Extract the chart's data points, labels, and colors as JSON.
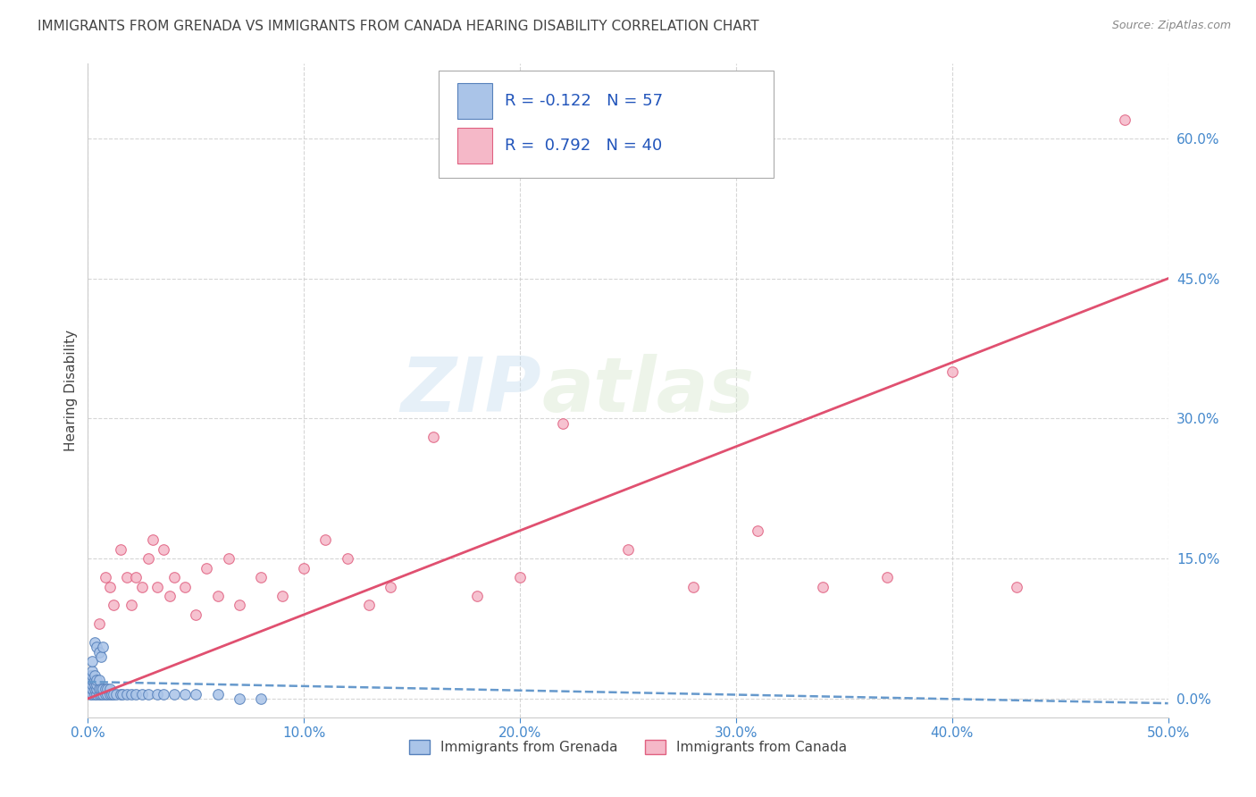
{
  "title": "IMMIGRANTS FROM GRENADA VS IMMIGRANTS FROM CANADA HEARING DISABILITY CORRELATION CHART",
  "source": "Source: ZipAtlas.com",
  "ylabel": "Hearing Disability",
  "xlim": [
    0.0,
    0.5
  ],
  "ylim": [
    -0.02,
    0.68
  ],
  "xticks": [
    0.0,
    0.1,
    0.2,
    0.3,
    0.4,
    0.5
  ],
  "yticks": [
    0.0,
    0.15,
    0.3,
    0.45,
    0.6
  ],
  "xticklabels": [
    "0.0%",
    "10.0%",
    "20.0%",
    "30.0%",
    "40.0%",
    "50.0%"
  ],
  "yticklabels": [
    "0.0%",
    "15.0%",
    "30.0%",
    "45.0%",
    "60.0%"
  ],
  "background_color": "#ffffff",
  "watermark_zip": "ZIP",
  "watermark_atlas": "atlas",
  "grenada_color": "#aac4e8",
  "canada_color": "#f5b8c8",
  "grenada_edge": "#5580bb",
  "canada_edge": "#e06080",
  "trend_grenada_color": "#6699cc",
  "trend_canada_color": "#e05070",
  "grid_color": "#cccccc",
  "tick_color": "#4488cc",
  "title_color": "#444444",
  "source_color": "#888888",
  "grenada_x": [
    0.001,
    0.001,
    0.001,
    0.001,
    0.001,
    0.002,
    0.002,
    0.002,
    0.002,
    0.002,
    0.002,
    0.002,
    0.003,
    0.003,
    0.003,
    0.003,
    0.003,
    0.003,
    0.004,
    0.004,
    0.004,
    0.004,
    0.004,
    0.005,
    0.005,
    0.005,
    0.005,
    0.006,
    0.006,
    0.006,
    0.007,
    0.007,
    0.007,
    0.008,
    0.008,
    0.009,
    0.009,
    0.01,
    0.01,
    0.011,
    0.012,
    0.013,
    0.015,
    0.016,
    0.018,
    0.02,
    0.022,
    0.025,
    0.028,
    0.032,
    0.035,
    0.04,
    0.045,
    0.05,
    0.06,
    0.07,
    0.08
  ],
  "grenada_y": [
    0.005,
    0.01,
    0.015,
    0.02,
    0.025,
    0.005,
    0.01,
    0.015,
    0.02,
    0.025,
    0.03,
    0.04,
    0.005,
    0.01,
    0.015,
    0.02,
    0.025,
    0.06,
    0.005,
    0.01,
    0.015,
    0.02,
    0.055,
    0.005,
    0.01,
    0.02,
    0.05,
    0.005,
    0.01,
    0.045,
    0.005,
    0.01,
    0.055,
    0.005,
    0.01,
    0.005,
    0.01,
    0.005,
    0.01,
    0.005,
    0.005,
    0.005,
    0.005,
    0.005,
    0.005,
    0.005,
    0.005,
    0.005,
    0.005,
    0.005,
    0.005,
    0.005,
    0.005,
    0.005,
    0.005,
    0.0,
    0.0
  ],
  "canada_x": [
    0.005,
    0.008,
    0.01,
    0.012,
    0.015,
    0.018,
    0.02,
    0.022,
    0.025,
    0.028,
    0.03,
    0.032,
    0.035,
    0.038,
    0.04,
    0.045,
    0.05,
    0.055,
    0.06,
    0.065,
    0.07,
    0.08,
    0.09,
    0.1,
    0.11,
    0.12,
    0.13,
    0.14,
    0.16,
    0.18,
    0.2,
    0.22,
    0.25,
    0.28,
    0.31,
    0.34,
    0.37,
    0.4,
    0.43,
    0.48
  ],
  "canada_y": [
    0.08,
    0.13,
    0.12,
    0.1,
    0.16,
    0.13,
    0.1,
    0.13,
    0.12,
    0.15,
    0.17,
    0.12,
    0.16,
    0.11,
    0.13,
    0.12,
    0.09,
    0.14,
    0.11,
    0.15,
    0.1,
    0.13,
    0.11,
    0.14,
    0.17,
    0.15,
    0.1,
    0.12,
    0.28,
    0.11,
    0.13,
    0.295,
    0.16,
    0.12,
    0.18,
    0.12,
    0.13,
    0.35,
    0.12,
    0.62
  ],
  "canada_trend_x": [
    0.0,
    0.5
  ],
  "canada_trend_y": [
    0.0,
    0.45
  ],
  "grenada_trend_x": [
    0.0,
    0.5
  ],
  "grenada_trend_y": [
    0.018,
    -0.005
  ]
}
